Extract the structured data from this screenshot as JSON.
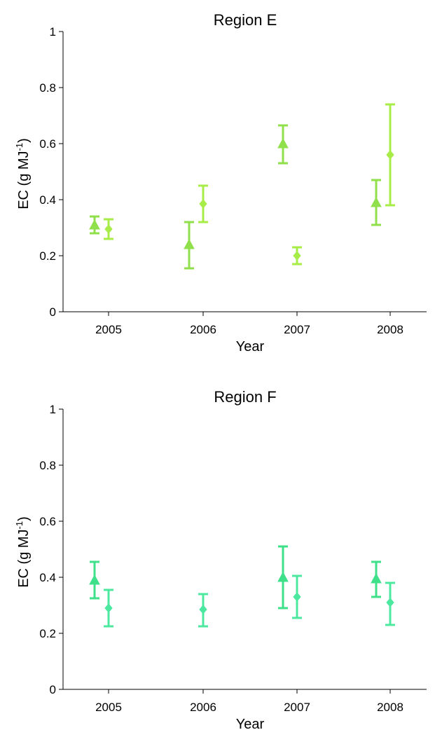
{
  "chart_data": [
    {
      "type": "scatter",
      "title": "Region E",
      "xlabel": "Year",
      "ylabel": "EC (g MJ",
      "ylabel_superscript": "-1",
      "ylabel_suffix": ")",
      "categories": [
        "2005",
        "2006",
        "2007",
        "2008"
      ],
      "ylim": [
        0,
        1
      ],
      "yticks": [
        "0",
        "0.2",
        "0.4",
        "0.6",
        "0.8",
        "1"
      ],
      "grid": false,
      "series": [
        {
          "marker": "triangle",
          "color": "#8FE04A",
          "points": [
            {
              "x": "2005",
              "y": 0.31,
              "low": 0.28,
              "high": 0.34
            },
            {
              "x": "2006",
              "y": 0.24,
              "low": 0.155,
              "high": 0.32
            },
            {
              "x": "2007",
              "y": 0.6,
              "low": 0.53,
              "high": 0.665
            },
            {
              "x": "2008",
              "y": 0.39,
              "low": 0.31,
              "high": 0.47
            }
          ]
        },
        {
          "marker": "diamond",
          "color": "#A8EC48",
          "points": [
            {
              "x": "2005",
              "y": 0.295,
              "low": 0.26,
              "high": 0.33
            },
            {
              "x": "2006",
              "y": 0.385,
              "low": 0.32,
              "high": 0.45
            },
            {
              "x": "2007",
              "y": 0.2,
              "low": 0.17,
              "high": 0.23
            },
            {
              "x": "2008",
              "y": 0.56,
              "low": 0.38,
              "high": 0.74
            }
          ]
        }
      ]
    },
    {
      "type": "scatter",
      "title": "Region F",
      "xlabel": "Year",
      "ylabel": "EC (g MJ",
      "ylabel_superscript": "-1",
      "ylabel_suffix": ")",
      "categories": [
        "2005",
        "2006",
        "2007",
        "2008"
      ],
      "ylim": [
        0,
        1
      ],
      "yticks": [
        "0",
        "0.2",
        "0.4",
        "0.6",
        "0.8",
        "1"
      ],
      "grid": false,
      "series": [
        {
          "marker": "triangle",
          "color": "#3EE08A",
          "points": [
            {
              "x": "2005",
              "y": 0.39,
              "low": 0.325,
              "high": 0.455
            },
            {
              "x": "2007",
              "y": 0.4,
              "low": 0.29,
              "high": 0.51
            },
            {
              "x": "2008",
              "y": 0.395,
              "low": 0.33,
              "high": 0.455
            }
          ]
        },
        {
          "marker": "diamond",
          "color": "#4CE8A0",
          "points": [
            {
              "x": "2005",
              "y": 0.29,
              "low": 0.225,
              "high": 0.355
            },
            {
              "x": "2006",
              "y": 0.285,
              "low": 0.225,
              "high": 0.34
            },
            {
              "x": "2007",
              "y": 0.33,
              "low": 0.255,
              "high": 0.405
            },
            {
              "x": "2008",
              "y": 0.31,
              "low": 0.23,
              "high": 0.38
            }
          ]
        }
      ]
    }
  ]
}
